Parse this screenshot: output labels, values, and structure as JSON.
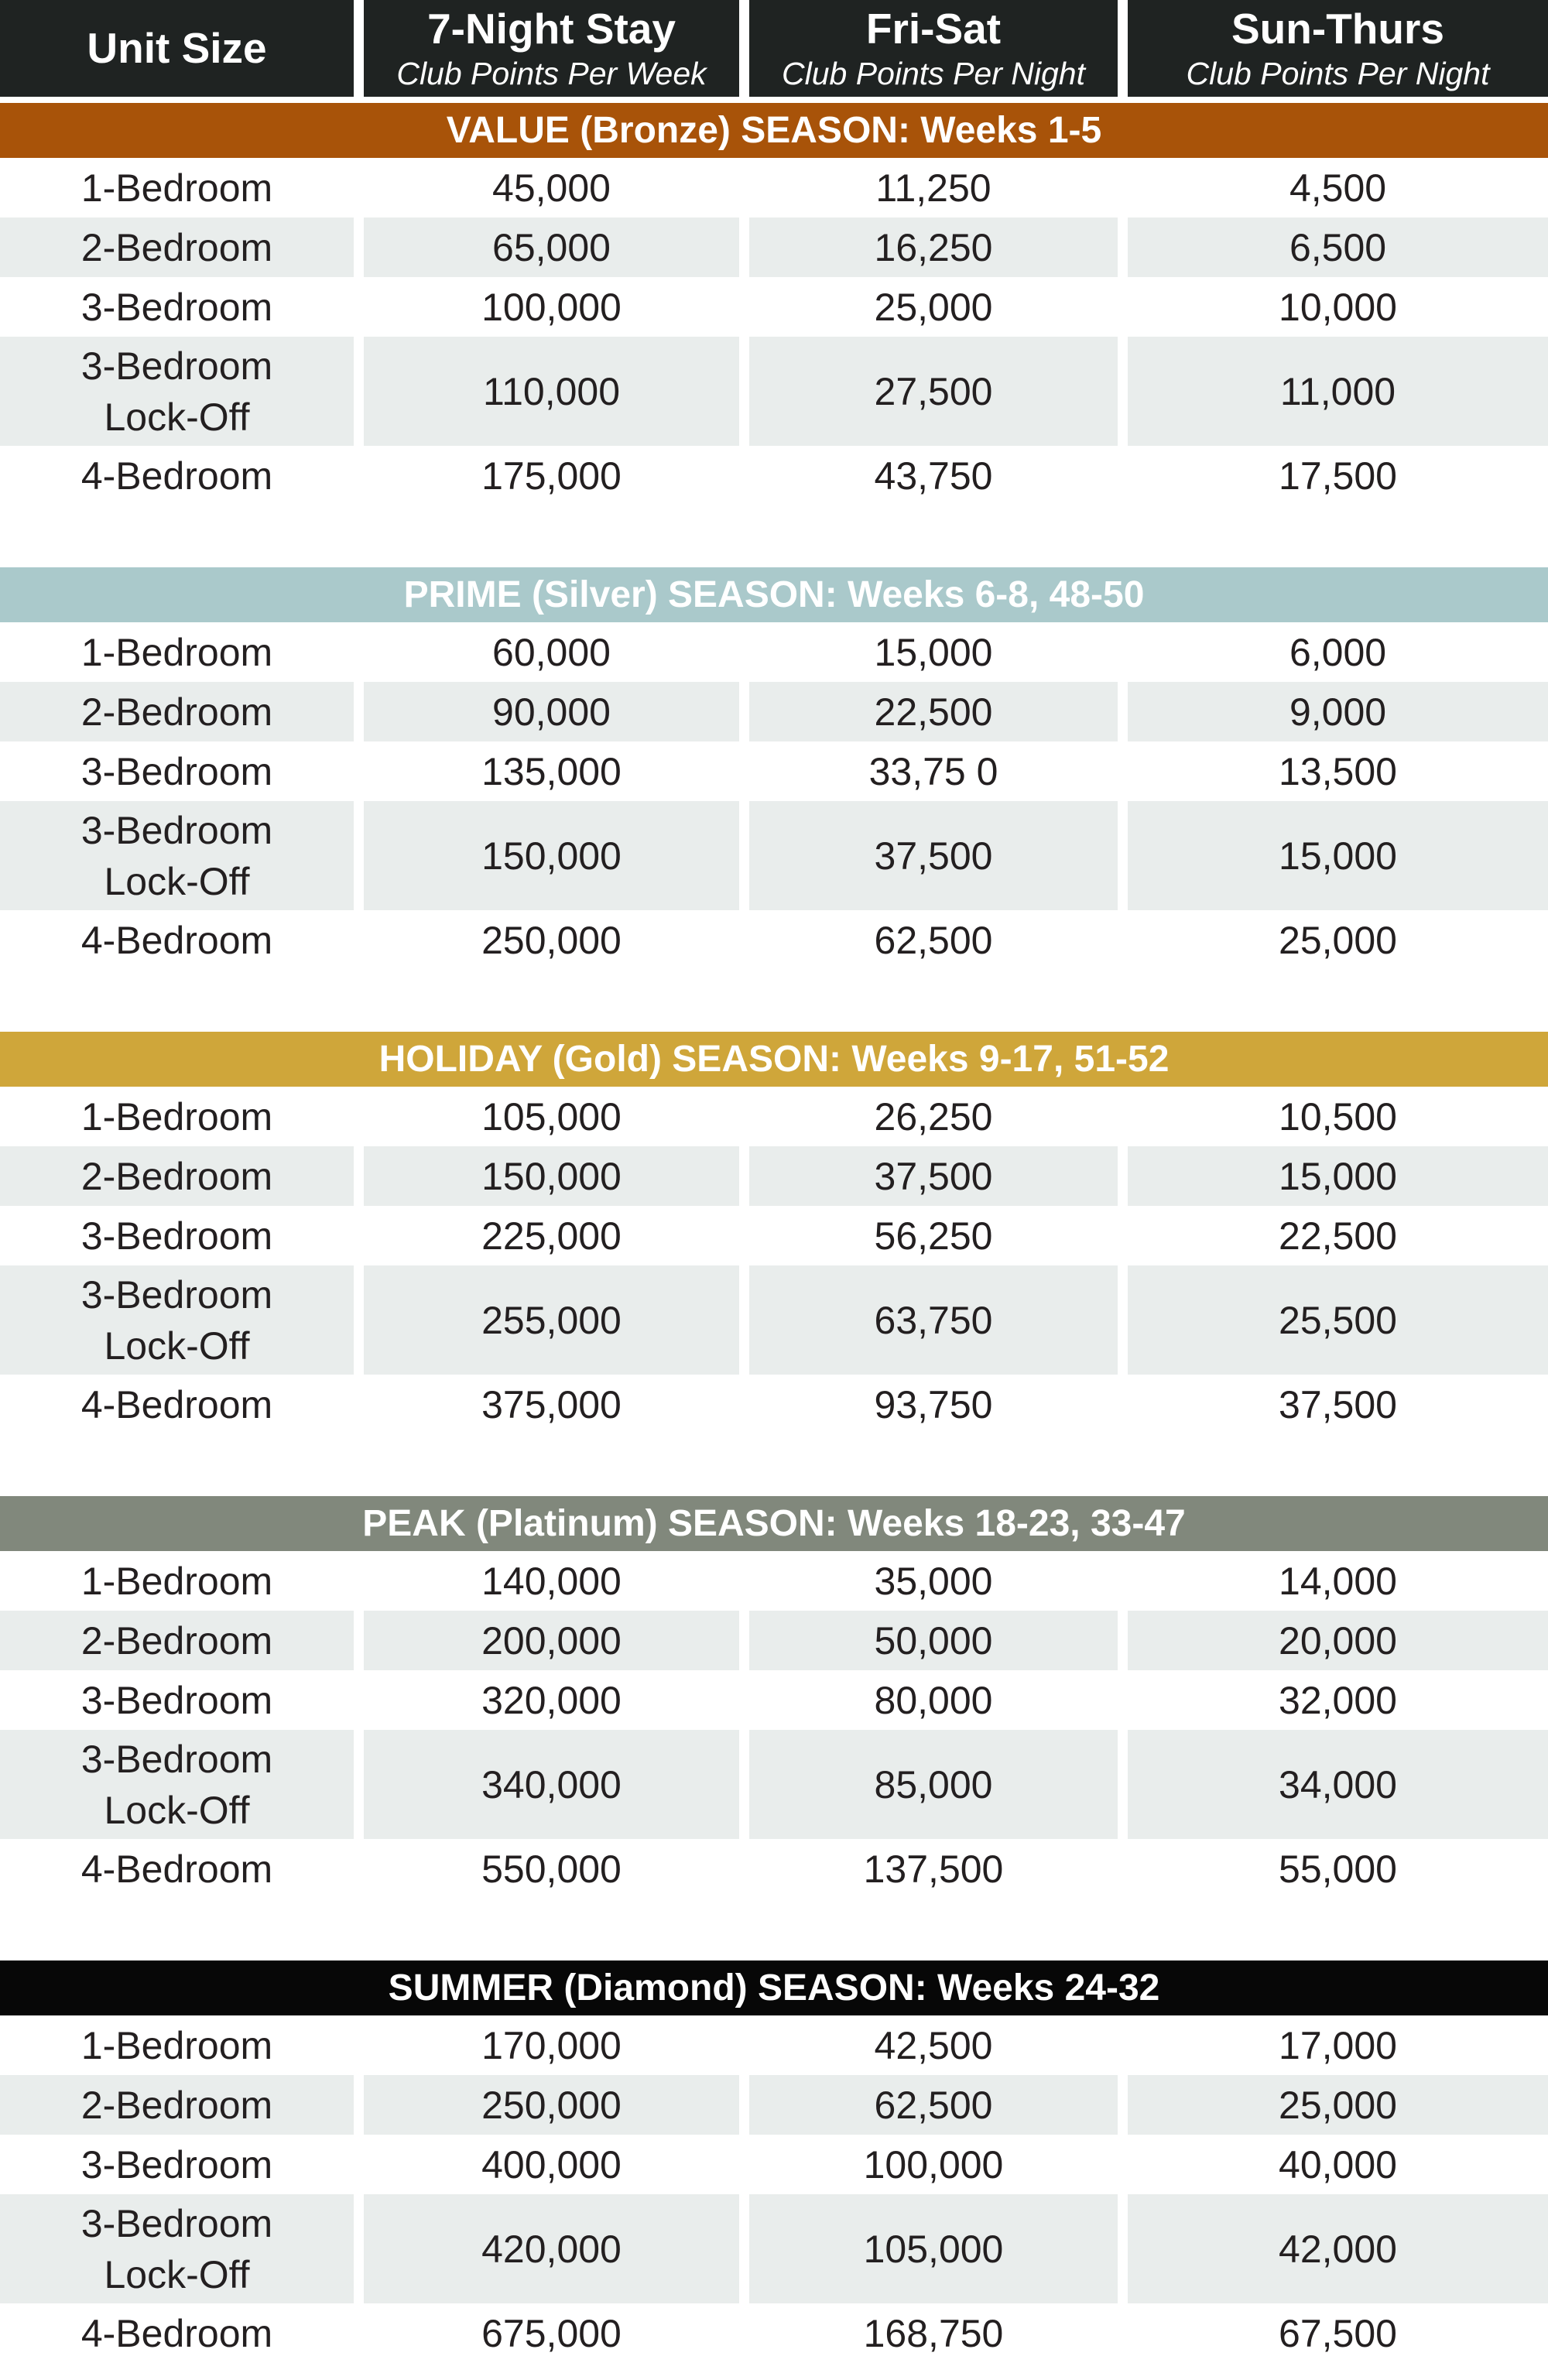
{
  "header": {
    "columns": [
      {
        "title": "Unit Size",
        "subtitle": ""
      },
      {
        "title": "7-Night Stay",
        "subtitle": "Club Points Per Week"
      },
      {
        "title": "Fri-Sat",
        "subtitle": "Club Points Per Night"
      },
      {
        "title": "Sun-Thurs",
        "subtitle": "Club Points Per Night"
      }
    ]
  },
  "seasons": [
    {
      "name": "value-bronze",
      "title": "VALUE (Bronze) SEASON: Weeks 1-5",
      "bar_color": "#a85309",
      "rows": [
        {
          "unit": "1-Bedroom",
          "seven_night": "45,000",
          "fri_sat": "11,250",
          "sun_thurs": "4,500"
        },
        {
          "unit": "2-Bedroom",
          "seven_night": "65,000",
          "fri_sat": "16,250",
          "sun_thurs": "6,500"
        },
        {
          "unit": "3-Bedroom",
          "seven_night": "100,000",
          "fri_sat": "25,000",
          "sun_thurs": "10,000"
        },
        {
          "unit": "3-Bedroom\nLock-Off",
          "seven_night": "110,000",
          "fri_sat": "27,500",
          "sun_thurs": "11,000"
        },
        {
          "unit": "4-Bedroom",
          "seven_night": "175,000",
          "fri_sat": "43,750",
          "sun_thurs": "17,500"
        }
      ]
    },
    {
      "name": "prime-silver",
      "title": "PRIME (Silver) SEASON: Weeks 6-8, 48-50",
      "bar_color": "#aac9cb",
      "rows": [
        {
          "unit": "1-Bedroom",
          "seven_night": "60,000",
          "fri_sat": "15,000",
          "sun_thurs": "6,000"
        },
        {
          "unit": "2-Bedroom",
          "seven_night": "90,000",
          "fri_sat": "22,500",
          "sun_thurs": "9,000"
        },
        {
          "unit": "3-Bedroom",
          "seven_night": "135,000",
          "fri_sat": "33,75 0",
          "sun_thurs": "13,500"
        },
        {
          "unit": "3-Bedroom\nLock-Off",
          "seven_night": "150,000",
          "fri_sat": "37,500",
          "sun_thurs": "15,000"
        },
        {
          "unit": "4-Bedroom",
          "seven_night": "250,000",
          "fri_sat": "62,500",
          "sun_thurs": "25,000"
        }
      ]
    },
    {
      "name": "holiday-gold",
      "title": "HOLIDAY (Gold) SEASON: Weeks 9-17, 51-52",
      "bar_color": "#cfa63a",
      "rows": [
        {
          "unit": "1-Bedroom",
          "seven_night": "105,000",
          "fri_sat": "26,250",
          "sun_thurs": "10,500"
        },
        {
          "unit": "2-Bedroom",
          "seven_night": "150,000",
          "fri_sat": "37,500",
          "sun_thurs": "15,000"
        },
        {
          "unit": "3-Bedroom",
          "seven_night": "225,000",
          "fri_sat": "56,250",
          "sun_thurs": "22,500"
        },
        {
          "unit": "3-Bedroom\nLock-Off",
          "seven_night": "255,000",
          "fri_sat": "63,750",
          "sun_thurs": "25,500"
        },
        {
          "unit": "4-Bedroom",
          "seven_night": "375,000",
          "fri_sat": "93,750",
          "sun_thurs": "37,500"
        }
      ]
    },
    {
      "name": "peak-platinum",
      "title": "PEAK (Platinum) SEASON: Weeks 18-23, 33-47",
      "bar_color": "#81887c",
      "rows": [
        {
          "unit": "1-Bedroom",
          "seven_night": "140,000",
          "fri_sat": "35,000",
          "sun_thurs": "14,000"
        },
        {
          "unit": "2-Bedroom",
          "seven_night": "200,000",
          "fri_sat": "50,000",
          "sun_thurs": "20,000"
        },
        {
          "unit": "3-Bedroom",
          "seven_night": "320,000",
          "fri_sat": "80,000",
          "sun_thurs": "32,000"
        },
        {
          "unit": "3-Bedroom\nLock-Off",
          "seven_night": "340,000",
          "fri_sat": "85,000",
          "sun_thurs": "34,000"
        },
        {
          "unit": "4-Bedroom",
          "seven_night": "550,000",
          "fri_sat": "137,500",
          "sun_thurs": "55,000"
        }
      ]
    },
    {
      "name": "summer-diamond",
      "title": "SUMMER (Diamond) SEASON: Weeks 24-32",
      "bar_color": "#070707",
      "rows": [
        {
          "unit": "1-Bedroom",
          "seven_night": "170,000",
          "fri_sat": "42,500",
          "sun_thurs": "17,000"
        },
        {
          "unit": "2-Bedroom",
          "seven_night": "250,000",
          "fri_sat": "62,500",
          "sun_thurs": "25,000"
        },
        {
          "unit": "3-Bedroom",
          "seven_night": "400,000",
          "fri_sat": "100,000",
          "sun_thurs": "40,000"
        },
        {
          "unit": "3-Bedroom\nLock-Off",
          "seven_night": "420,000",
          "fri_sat": "105,000",
          "sun_thurs": "42,000"
        },
        {
          "unit": "4-Bedroom",
          "seven_night": "675,000",
          "fri_sat": "168,750",
          "sun_thurs": "67,500"
        }
      ]
    }
  ],
  "colors": {
    "header_bg": "#1f2322",
    "header_text": "#ffffff",
    "season_text": "#ffffff",
    "row_bg": "#ffffff",
    "row_alt_bg": "#e9edec",
    "cell_text": "#231f20"
  }
}
